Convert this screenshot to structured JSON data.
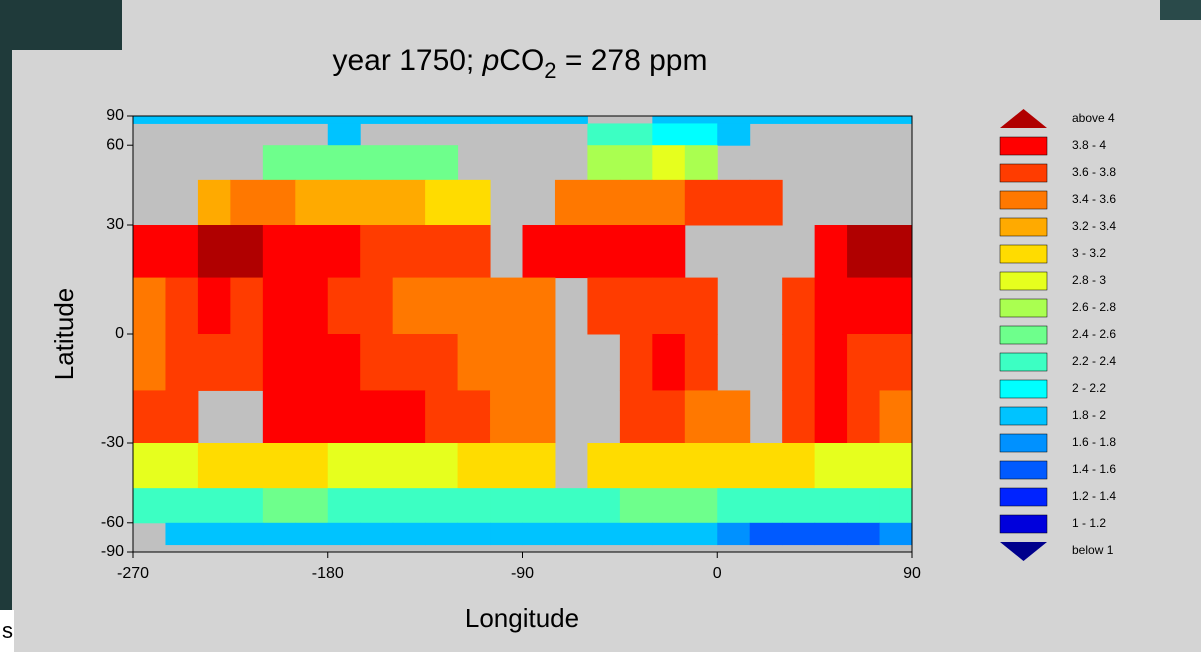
{
  "background_text": "s",
  "chart_data": {
    "type": "heatmap",
    "title_parts": [
      "year 1750; ",
      "p",
      "CO",
      "2",
      " = 278 ppm"
    ],
    "x_label": "Longitude",
    "y_label": "Latitude",
    "xlim": [
      -270,
      90
    ],
    "xticks": [
      -270,
      -180,
      -90,
      0,
      90
    ],
    "ylim": [
      -90,
      90
    ],
    "yticks": [
      -90,
      -60,
      -30,
      0,
      30,
      60,
      90
    ],
    "yscale": "sine",
    "land_color": "#c0c0c0",
    "levels": [
      1,
      1.2,
      1.4,
      1.6,
      1.8,
      2,
      2.2,
      2.4,
      2.6,
      2.8,
      3,
      3.2,
      3.4,
      3.6,
      3.8,
      4
    ],
    "legend": [
      {
        "label": "above 4",
        "color": "#b00000"
      },
      {
        "label": "3.8 - 4",
        "color": "#ff0000"
      },
      {
        "label": "3.6 - 3.8",
        "color": "#ff3c00"
      },
      {
        "label": "3.4 - 3.6",
        "color": "#ff7800"
      },
      {
        "label": "3.2 - 3.4",
        "color": "#ffaa00"
      },
      {
        "label": "3 - 3.2",
        "color": "#ffdc00"
      },
      {
        "label": "2.8 - 3",
        "color": "#e6ff1e"
      },
      {
        "label": "2.6 - 2.8",
        "color": "#aaff50"
      },
      {
        "label": "2.4 - 2.6",
        "color": "#6eff8c"
      },
      {
        "label": "2.2 - 2.4",
        "color": "#3cffc3"
      },
      {
        "label": "2 - 2.2",
        "color": "#00ffff"
      },
      {
        "label": "1.8 - 2",
        "color": "#00c3ff"
      },
      {
        "label": "1.6 - 1.8",
        "color": "#0091ff"
      },
      {
        "label": "1.4 - 1.6",
        "color": "#005aff"
      },
      {
        "label": "1.2 - 1.4",
        "color": "#0023ff"
      },
      {
        "label": "1 - 1.2",
        "color": "#0000dc"
      },
      {
        "label": "below 1",
        "color": "#00008c"
      }
    ],
    "z": [
      [
        1.9,
        1.9,
        1.9,
        1.9,
        1.9,
        1.9,
        1.9,
        1.9,
        1.9,
        1.9,
        1.9,
        1.9,
        1.9,
        1.9,
        null,
        null,
        1.9,
        1.9,
        1.9,
        1.9,
        1.9,
        1.9,
        1.9,
        1.9
      ],
      [
        null,
        null,
        null,
        null,
        null,
        null,
        1.9,
        null,
        null,
        null,
        null,
        null,
        null,
        null,
        2.2,
        2.2,
        2.1,
        2.0,
        1.9,
        null,
        null,
        null,
        null,
        null
      ],
      [
        null,
        null,
        null,
        null,
        2.4,
        2.4,
        2.5,
        2.5,
        2.4,
        2.4,
        null,
        null,
        null,
        null,
        2.7,
        2.7,
        2.8,
        2.6,
        null,
        null,
        null,
        null,
        null,
        null
      ],
      [
        null,
        null,
        3.3,
        3.4,
        3.4,
        3.3,
        3.3,
        3.2,
        3.2,
        3.1,
        3.0,
        null,
        null,
        3.4,
        3.4,
        3.5,
        3.4,
        3.6,
        3.6,
        3.6,
        null,
        null,
        null,
        null
      ],
      [
        3.8,
        3.8,
        4.1,
        4.1,
        3.8,
        3.8,
        3.8,
        3.7,
        3.7,
        3.6,
        3.6,
        null,
        3.9,
        3.9,
        3.9,
        3.8,
        3.8,
        null,
        null,
        null,
        null,
        3.9,
        4.0,
        4.1
      ],
      [
        3.5,
        3.6,
        3.8,
        3.7,
        3.8,
        3.8,
        3.7,
        3.6,
        3.5,
        3.5,
        3.5,
        3.5,
        3.4,
        null,
        3.6,
        3.7,
        3.7,
        3.6,
        null,
        null,
        3.7,
        3.8,
        3.8,
        3.9
      ],
      [
        3.5,
        3.6,
        3.7,
        3.7,
        3.8,
        3.8,
        3.8,
        3.7,
        3.6,
        3.6,
        3.5,
        3.5,
        3.4,
        null,
        null,
        3.7,
        3.9,
        3.6,
        null,
        null,
        3.7,
        3.8,
        3.7,
        3.6
      ],
      [
        3.6,
        3.7,
        null,
        null,
        3.8,
        3.8,
        3.8,
        3.9,
        3.9,
        3.7,
        3.6,
        3.5,
        3.4,
        null,
        null,
        3.6,
        3.6,
        3.5,
        3.4,
        null,
        3.7,
        3.9,
        3.7,
        3.5
      ],
      [
        2.9,
        2.9,
        3.0,
        3.0,
        3.0,
        3.0,
        2.9,
        2.9,
        2.9,
        2.9,
        3.0,
        3.0,
        3.0,
        null,
        3.0,
        3.0,
        3.0,
        3.1,
        3.1,
        3.1,
        3.0,
        2.9,
        2.8,
        2.8
      ],
      [
        2.3,
        2.3,
        2.3,
        2.3,
        2.4,
        2.4,
        2.3,
        2.3,
        2.3,
        2.3,
        2.3,
        2.3,
        2.3,
        2.3,
        2.3,
        2.4,
        2.4,
        2.4,
        2.3,
        2.3,
        2.3,
        2.3,
        2.3,
        2.3
      ],
      [
        null,
        1.9,
        1.9,
        1.9,
        1.9,
        1.9,
        1.9,
        1.9,
        1.9,
        1.9,
        1.9,
        1.9,
        1.9,
        1.9,
        1.9,
        1.9,
        1.9,
        1.9,
        1.6,
        1.5,
        1.5,
        1.5,
        1.5,
        1.6
      ],
      [
        null,
        null,
        null,
        null,
        null,
        null,
        null,
        null,
        null,
        null,
        null,
        null,
        null,
        null,
        null,
        null,
        null,
        null,
        null,
        null,
        null,
        null,
        null,
        null
      ]
    ]
  }
}
